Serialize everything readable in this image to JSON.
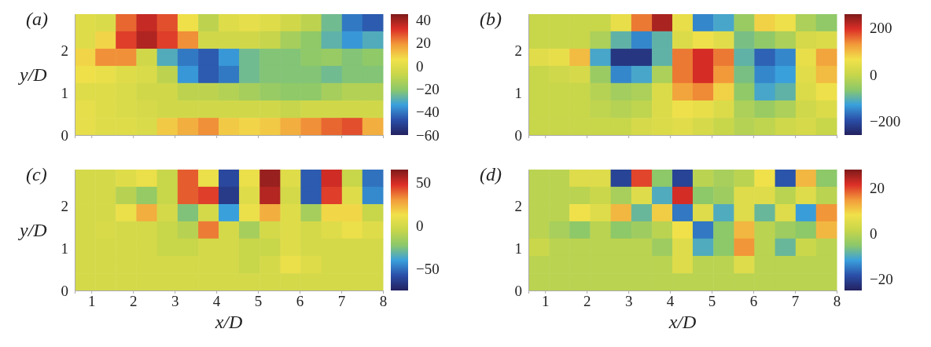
{
  "chart_data": [
    {
      "type": "heatmap",
      "title": "(a)",
      "ylabel": "y/D",
      "tick_labels": "y",
      "xlim": [
        0.6,
        8
      ],
      "ylim": [
        0,
        2.85
      ],
      "xticks": [
        1,
        2,
        3,
        4,
        5,
        6,
        7,
        8
      ],
      "yticks": [
        0,
        1,
        2
      ],
      "clim": [
        -60,
        45
      ],
      "cticks": [
        40,
        20,
        0,
        -20,
        -40,
        -60
      ],
      "x": [
        0.85,
        1.34,
        1.83,
        2.33,
        2.82,
        3.32,
        3.81,
        4.3,
        4.79,
        5.29,
        5.78,
        6.27,
        6.77,
        7.26,
        7.75
      ],
      "y": [
        2.65,
        2.24,
        1.83,
        1.43,
        1.02,
        0.61,
        0.2
      ],
      "cells": [
        [
          0,
          -2,
          25,
          35,
          28,
          5,
          -10,
          0,
          2,
          0,
          -5,
          -10,
          -25,
          -40,
          -45
        ],
        [
          0,
          8,
          30,
          38,
          30,
          20,
          -5,
          -5,
          -5,
          -8,
          -15,
          -20,
          -28,
          -35,
          -30
        ],
        [
          8,
          20,
          20,
          -5,
          -30,
          -40,
          -45,
          -35,
          -25,
          -22,
          -22,
          -20,
          -18,
          -22,
          -20
        ],
        [
          5,
          3,
          0,
          -2,
          -10,
          -35,
          -45,
          -40,
          -25,
          -22,
          -22,
          -22,
          -25,
          -22,
          -22
        ],
        [
          0,
          0,
          -2,
          -5,
          -5,
          -10,
          -10,
          -12,
          -15,
          -18,
          -20,
          -20,
          -15,
          -12,
          -12
        ],
        [
          2,
          0,
          -2,
          -3,
          -5,
          -5,
          -5,
          -5,
          -5,
          -5,
          -8,
          -5,
          -5,
          -5,
          -5
        ],
        [
          2,
          0,
          0,
          -2,
          10,
          15,
          20,
          10,
          8,
          10,
          15,
          20,
          25,
          28,
          15
        ]
      ]
    },
    {
      "type": "heatmap",
      "title": "(b)",
      "tick_labels": "y",
      "xlim": [
        0.6,
        8
      ],
      "ylim": [
        0,
        2.85
      ],
      "xticks": [
        1,
        2,
        3,
        4,
        5,
        6,
        7,
        8
      ],
      "yticks": [
        0,
        1,
        2
      ],
      "clim": [
        -260,
        260
      ],
      "cticks": [
        200,
        0,
        -200
      ],
      "x": [
        0.85,
        1.34,
        1.83,
        2.33,
        2.82,
        3.32,
        3.81,
        4.3,
        4.79,
        5.29,
        5.78,
        6.27,
        6.77,
        7.26,
        7.75
      ],
      "y": [
        2.65,
        2.24,
        1.83,
        1.43,
        1.02,
        0.61,
        0.2
      ],
      "cells": [
        [
          0,
          0,
          0,
          0,
          50,
          150,
          230,
          50,
          -150,
          -120,
          -50,
          80,
          60,
          -30,
          -60
        ],
        [
          0,
          0,
          0,
          -30,
          -100,
          -150,
          -100,
          30,
          60,
          40,
          -80,
          -60,
          -30,
          20,
          30
        ],
        [
          40,
          50,
          100,
          -120,
          -230,
          -230,
          -100,
          150,
          200,
          150,
          -100,
          -180,
          -150,
          50,
          120
        ],
        [
          0,
          10,
          20,
          -50,
          -150,
          -120,
          -30,
          150,
          200,
          130,
          -80,
          -150,
          -130,
          40,
          100
        ],
        [
          0,
          0,
          0,
          -20,
          -40,
          -30,
          30,
          120,
          140,
          80,
          -60,
          -120,
          -100,
          30,
          60
        ],
        [
          0,
          0,
          0,
          -10,
          -20,
          -10,
          30,
          60,
          50,
          30,
          -30,
          -50,
          -30,
          10,
          30
        ],
        [
          0,
          0,
          0,
          0,
          0,
          20,
          30,
          40,
          20,
          0,
          -20,
          -10,
          10,
          20,
          0
        ]
      ]
    },
    {
      "type": "heatmap",
      "title": "(c)",
      "ylabel": "y/D",
      "xlabel": "x/D",
      "xlim": [
        0.6,
        8
      ],
      "ylim": [
        0,
        2.85
      ],
      "xticks": [
        1,
        2,
        3,
        4,
        5,
        6,
        7,
        8
      ],
      "yticks": [
        0,
        1,
        2
      ],
      "clim": [
        -75,
        65
      ],
      "cticks": [
        50,
        0,
        -50
      ],
      "x": [
        0.85,
        1.34,
        1.83,
        2.33,
        2.82,
        3.32,
        3.81,
        4.3,
        4.79,
        5.29,
        5.78,
        6.27,
        6.77,
        7.26,
        7.75
      ],
      "y": [
        2.65,
        2.24,
        1.83,
        1.43,
        1.02,
        0.61,
        0.2
      ],
      "cells": [
        [
          0,
          0,
          5,
          10,
          -5,
          40,
          10,
          -60,
          10,
          60,
          5,
          -55,
          50,
          -5,
          -50
        ],
        [
          0,
          0,
          -10,
          -20,
          -5,
          40,
          45,
          -65,
          5,
          55,
          0,
          -55,
          45,
          5,
          -45
        ],
        [
          0,
          0,
          10,
          25,
          0,
          -25,
          0,
          -40,
          10,
          25,
          5,
          -15,
          15,
          15,
          -5
        ],
        [
          0,
          2,
          0,
          0,
          -5,
          -10,
          35,
          0,
          -15,
          0,
          5,
          0,
          5,
          10,
          5
        ],
        [
          0,
          0,
          0,
          0,
          -5,
          -5,
          0,
          0,
          -5,
          -5,
          5,
          0,
          0,
          0,
          0
        ],
        [
          0,
          0,
          0,
          0,
          0,
          0,
          0,
          0,
          -5,
          0,
          10,
          5,
          0,
          0,
          0
        ],
        [
          0,
          0,
          0,
          0,
          0,
          0,
          0,
          0,
          0,
          0,
          0,
          0,
          0,
          0,
          0
        ]
      ]
    },
    {
      "type": "heatmap",
      "title": "(d)",
      "xlabel": "x/D",
      "xlim": [
        0.6,
        8
      ],
      "ylim": [
        0,
        2.85
      ],
      "xticks": [
        1,
        2,
        3,
        4,
        5,
        6,
        7,
        8
      ],
      "yticks": [
        0,
        1,
        2
      ],
      "clim": [
        -25,
        28
      ],
      "cticks": [
        20,
        0,
        -20
      ],
      "x": [
        0.85,
        1.34,
        1.83,
        2.33,
        2.82,
        3.32,
        3.81,
        4.3,
        4.79,
        5.29,
        5.78,
        6.27,
        6.77,
        7.26,
        7.75
      ],
      "y": [
        2.65,
        2.24,
        1.83,
        1.43,
        1.02,
        0.61,
        0.2
      ],
      "cells": [
        [
          0,
          0,
          5,
          5,
          -20,
          20,
          -5,
          -20,
          0,
          -2,
          0,
          8,
          -18,
          12,
          -5
        ],
        [
          0,
          0,
          0,
          2,
          -2,
          5,
          -10,
          22,
          -5,
          -3,
          5,
          5,
          0,
          5,
          0
        ],
        [
          0,
          0,
          8,
          5,
          12,
          -8,
          10,
          -15,
          5,
          -10,
          5,
          -8,
          5,
          -12,
          15
        ],
        [
          0,
          -2,
          -5,
          0,
          -5,
          -3,
          0,
          8,
          -15,
          -5,
          12,
          0,
          -3,
          -5,
          12
        ],
        [
          2,
          0,
          0,
          0,
          0,
          0,
          -3,
          5,
          -10,
          -5,
          15,
          0,
          -8,
          2,
          0
        ],
        [
          0,
          0,
          0,
          0,
          0,
          0,
          0,
          5,
          0,
          0,
          5,
          0,
          0,
          0,
          0
        ],
        [
          0,
          0,
          0,
          0,
          0,
          0,
          0,
          0,
          0,
          0,
          0,
          0,
          0,
          0,
          0
        ]
      ]
    }
  ]
}
